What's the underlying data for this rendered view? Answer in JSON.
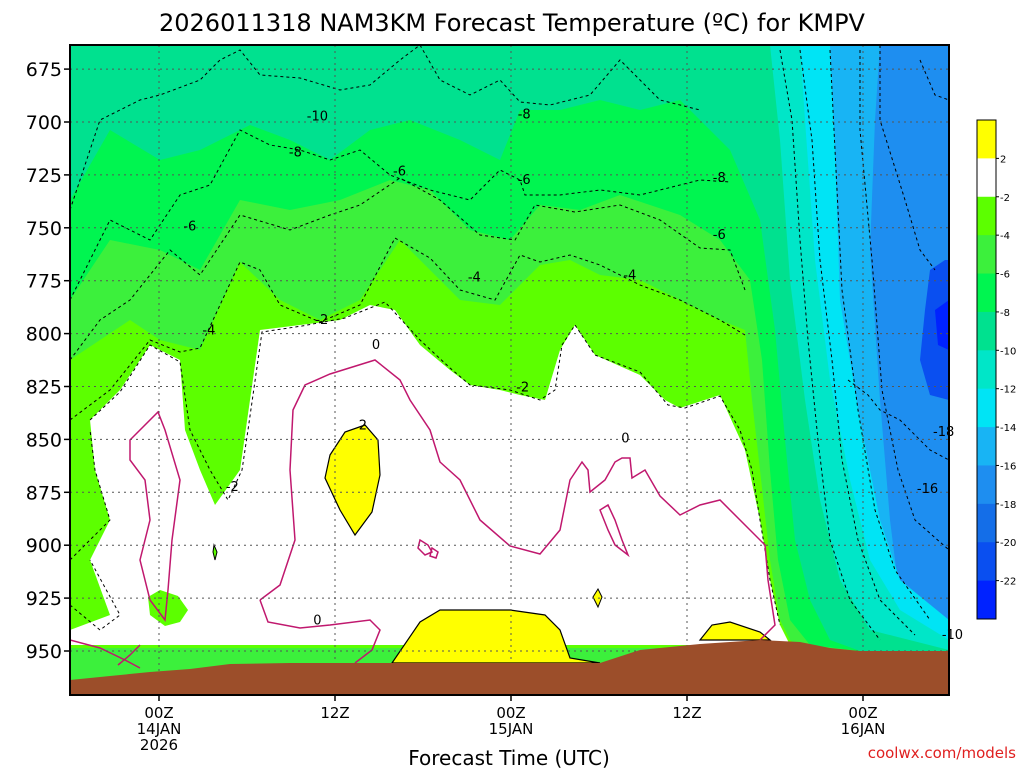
{
  "title": "2026011318 NAM3KM Forecast Temperature (ºC) for KMPV",
  "xlabel": "Forecast Time (UTC)",
  "credit": "coolwx.com/models",
  "chart_data": {
    "type": "heatmap",
    "title": "2026011318 NAM3KM Forecast Temperature (ºC) for KMPV",
    "xlabel": "Forecast Time (UTC)",
    "ylabel": "",
    "y_axis": {
      "ticks": [
        675,
        700,
        725,
        750,
        775,
        800,
        825,
        850,
        875,
        900,
        925,
        950
      ],
      "range": [
        675,
        970
      ],
      "inverted": true
    },
    "x_axis": {
      "ticks": [
        {
          "line1": "00Z",
          "line2": "14JAN",
          "line3": "2026"
        },
        {
          "line1": "12Z",
          "line2": "",
          "line3": ""
        },
        {
          "line1": "00Z",
          "line2": "15JAN",
          "line3": ""
        },
        {
          "line1": "12Z",
          "line2": "",
          "line3": ""
        },
        {
          "line1": "00Z",
          "line2": "16JAN",
          "line3": ""
        }
      ]
    },
    "grid": true,
    "colorbar": {
      "colors": [
        "#0022ff",
        "#0a4ff0",
        "#146ee8",
        "#1e8ef0",
        "#18b4f4",
        "#00e4f5",
        "#00e6c8",
        "#00e18f",
        "#00f550",
        "#3cf03c",
        "#5cff00",
        "#ffffff",
        "#ffff00"
      ],
      "labels": [
        "-22",
        "-20",
        "-18",
        "-16",
        "-14",
        "-12",
        "-10",
        "-8",
        "-6",
        "-4",
        "-2",
        "2"
      ]
    },
    "contour_labels": [
      {
        "text": "-10",
        "x_hours": 10.8,
        "p": 697
      },
      {
        "text": "-8",
        "x_hours": 24.9,
        "p": 696
      },
      {
        "text": "-8",
        "x_hours": 9.3,
        "p": 714
      },
      {
        "text": "-6",
        "x_hours": 16.4,
        "p": 723
      },
      {
        "text": "-6",
        "x_hours": 24.9,
        "p": 727
      },
      {
        "text": "-8",
        "x_hours": 38.2,
        "p": 726
      },
      {
        "text": "-6",
        "x_hours": 2.1,
        "p": 749
      },
      {
        "text": "-6",
        "x_hours": 38.2,
        "p": 753
      },
      {
        "text": "-4",
        "x_hours": 21.5,
        "p": 773
      },
      {
        "text": "-4",
        "x_hours": 32.1,
        "p": 772
      },
      {
        "text": "-2",
        "x_hours": 11.1,
        "p": 793
      },
      {
        "text": "-4",
        "x_hours": 3.4,
        "p": 798
      },
      {
        "text": "0",
        "x_hours": 14.8,
        "p": 805
      },
      {
        "text": "-2",
        "x_hours": 24.8,
        "p": 825
      },
      {
        "text": "2",
        "x_hours": 13.9,
        "p": 843
      },
      {
        "text": "0",
        "x_hours": 31.8,
        "p": 849
      },
      {
        "text": "-18",
        "x_hours": 53.5,
        "p": 846
      },
      {
        "text": "-2",
        "x_hours": 5.0,
        "p": 872
      },
      {
        "text": "-16",
        "x_hours": 52.4,
        "p": 873
      },
      {
        "text": "0",
        "x_hours": 10.8,
        "p": 935
      },
      {
        "text": "-10",
        "x_hours": 54.1,
        "p": 942
      }
    ]
  }
}
